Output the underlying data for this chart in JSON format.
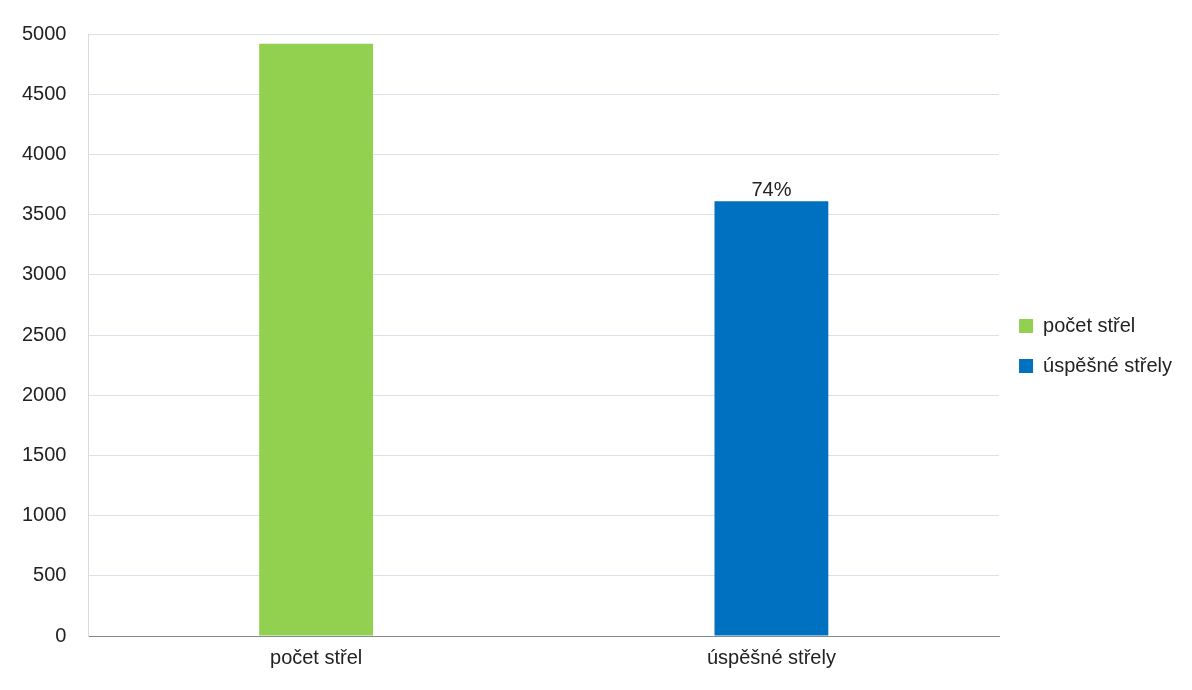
{
  "chart_data": {
    "type": "bar",
    "categories": [
      "počet střel",
      "úspěšné střely"
    ],
    "series": [
      {
        "name": "počet střel",
        "color": "#92d050",
        "values": [
          4920,
          null
        ]
      },
      {
        "name": "úspěšné střely",
        "color": "#0070c0",
        "values": [
          null,
          3610
        ]
      }
    ],
    "annotations": [
      {
        "text": "74%",
        "x": "úspěšné střely",
        "y": 3610
      }
    ],
    "ylim": [
      0,
      5000
    ],
    "yticks": [
      0,
      500,
      1000,
      1500,
      2000,
      2500,
      3000,
      3500,
      4000,
      4500,
      5000
    ],
    "grid": "y",
    "legend": "right"
  }
}
